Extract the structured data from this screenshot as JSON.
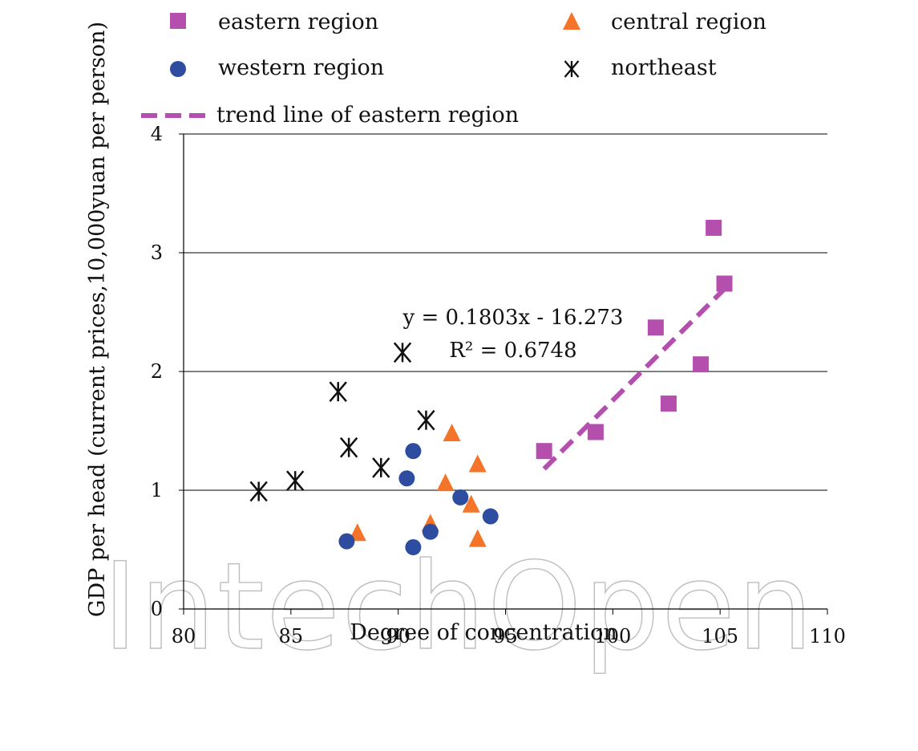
{
  "colors": {
    "eastern": "#B44FAE",
    "central": "#F4742A",
    "western": "#2E4DA0",
    "northeast": "#111111",
    "trend": "#B44FAE",
    "grid": "#000000",
    "watermark": "#bdbdbd"
  },
  "watermark_text": "IntechOpen",
  "chart_data": {
    "type": "scatter",
    "title": "",
    "xlabel": "Degree of concentration",
    "ylabel": "GDP per head (current prices,10,000yuan per person)",
    "xlim": [
      80,
      110
    ],
    "ylim": [
      0,
      4
    ],
    "xticks": [
      "80",
      "85",
      "90",
      "95",
      "100",
      "105",
      "110"
    ],
    "yticks": [
      "0",
      "1",
      "2",
      "3",
      "4"
    ],
    "grid": "horizontal",
    "legend_placement": "top",
    "legend": [
      {
        "label": "eastern region",
        "marker": "square",
        "color_key": "eastern"
      },
      {
        "label": "central region",
        "marker": "triangle",
        "color_key": "central"
      },
      {
        "label": "western region",
        "marker": "circle",
        "color_key": "western"
      },
      {
        "label": "northeast",
        "marker": "star",
        "color_key": "northeast"
      },
      {
        "label": "trend line of eastern region",
        "marker": "dashed-line",
        "color_key": "trend"
      }
    ],
    "series": [
      {
        "name": "eastern region",
        "marker": "square",
        "color_key": "eastern",
        "points": [
          [
            96.8,
            1.33
          ],
          [
            99.2,
            1.49
          ],
          [
            102.0,
            2.37
          ],
          [
            102.6,
            1.73
          ],
          [
            104.1,
            2.06
          ],
          [
            104.7,
            3.21
          ],
          [
            105.2,
            2.74
          ]
        ]
      },
      {
        "name": "central region",
        "marker": "triangle",
        "color_key": "central",
        "points": [
          [
            88.1,
            0.64
          ],
          [
            91.5,
            0.72
          ],
          [
            92.2,
            1.06
          ],
          [
            92.5,
            1.48
          ],
          [
            93.4,
            0.88
          ],
          [
            93.7,
            1.22
          ],
          [
            93.7,
            0.59
          ]
        ]
      },
      {
        "name": "western region",
        "marker": "circle",
        "color_key": "western",
        "points": [
          [
            87.6,
            0.57
          ],
          [
            90.4,
            1.1
          ],
          [
            90.7,
            1.33
          ],
          [
            90.7,
            0.52
          ],
          [
            91.5,
            0.65
          ],
          [
            92.9,
            0.94
          ],
          [
            94.3,
            0.78
          ]
        ]
      },
      {
        "name": "northeast",
        "marker": "star",
        "color_key": "northeast",
        "points": [
          [
            83.5,
            0.99
          ],
          [
            85.2,
            1.08
          ],
          [
            87.2,
            1.83
          ],
          [
            87.7,
            1.36
          ],
          [
            89.2,
            1.19
          ],
          [
            90.2,
            2.16
          ],
          [
            91.3,
            1.59
          ]
        ]
      }
    ],
    "trend_line": {
      "name": "trend line of eastern region",
      "slope": 0.1803,
      "intercept": -16.273,
      "x_range": [
        96.8,
        105.2
      ],
      "equation": "y = 0.1803x - 16.273",
      "r_squared": "R² = 0.6748"
    }
  }
}
